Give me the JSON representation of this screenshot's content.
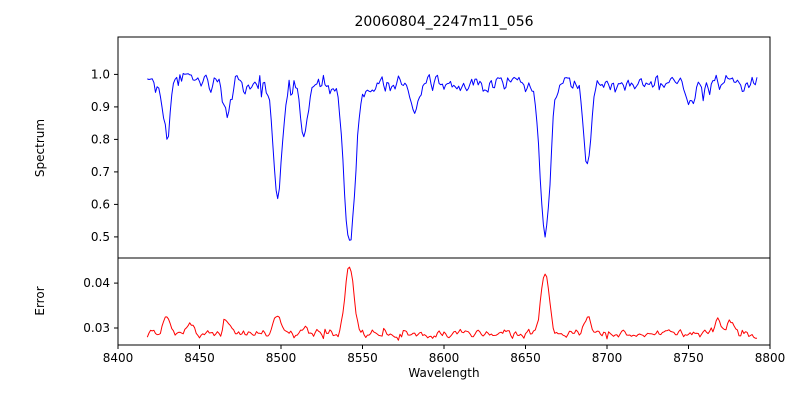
{
  "figure": {
    "title": "20060804_2247m11_056",
    "xlabel": "Wavelength",
    "background_color": "#ffffff"
  },
  "chart_data": [
    {
      "type": "line",
      "name": "spectrum",
      "ylabel": "Spectrum",
      "color": "#0000ff",
      "legend": null,
      "grid": false,
      "xlim": [
        8400,
        8800
      ],
      "ylim": [
        0.435,
        1.115
      ],
      "x_range": [
        8418,
        8792
      ],
      "x_step": 1,
      "yticks": [
        [
          0.5,
          "0.5"
        ],
        [
          0.6,
          "0.6"
        ],
        [
          0.7,
          "0.7"
        ],
        [
          0.8,
          "0.8"
        ],
        [
          0.9,
          "0.9"
        ],
        [
          1.0,
          "1.0"
        ]
      ],
      "baseline": 0.97,
      "noise_amplitude": 0.034,
      "clip_max": 1.055,
      "seed": 20060804,
      "absorption_lines": [
        {
          "center": 8430,
          "depth": 0.17,
          "width": 2.0
        },
        {
          "center": 8467,
          "depth": 0.1,
          "width": 2.0
        },
        {
          "center": 8498,
          "depth": 0.33,
          "width": 2.8
        },
        {
          "center": 8514,
          "depth": 0.17,
          "width": 2.0
        },
        {
          "center": 8542,
          "depth": 0.5,
          "width": 3.4
        },
        {
          "center": 8582,
          "depth": 0.07,
          "width": 2.0
        },
        {
          "center": 8662,
          "depth": 0.46,
          "width": 3.0
        },
        {
          "center": 8688,
          "depth": 0.26,
          "width": 2.2
        },
        {
          "center": 8751,
          "depth": 0.06,
          "width": 2.0
        }
      ]
    },
    {
      "type": "line",
      "name": "error",
      "ylabel": "Error",
      "color": "#ff0000",
      "legend": null,
      "grid": false,
      "xlim": [
        8400,
        8800
      ],
      "ylim": [
        0.0262,
        0.0456
      ],
      "x_range": [
        8418,
        8792
      ],
      "x_step": 1,
      "yticks": [
        [
          0.03,
          "0.03"
        ],
        [
          0.04,
          "0.04"
        ]
      ],
      "xticks": [
        [
          8400,
          "8400"
        ],
        [
          8450,
          "8450"
        ],
        [
          8500,
          "8500"
        ],
        [
          8550,
          "8550"
        ],
        [
          8600,
          "8600"
        ],
        [
          8650,
          "8650"
        ],
        [
          8700,
          "8700"
        ],
        [
          8750,
          "8750"
        ],
        [
          8800,
          "8800"
        ]
      ],
      "baseline": 0.0287,
      "noise_amplitude": 0.0011,
      "clip_max": 0.0452,
      "seed": 2247,
      "emission_peaks": [
        {
          "center": 8430,
          "height": 0.0035,
          "width": 2.0
        },
        {
          "center": 8445,
          "height": 0.002,
          "width": 2.0
        },
        {
          "center": 8467,
          "height": 0.0028,
          "width": 2.0
        },
        {
          "center": 8498,
          "height": 0.0045,
          "width": 2.6
        },
        {
          "center": 8514,
          "height": 0.002,
          "width": 2.0
        },
        {
          "center": 8542,
          "height": 0.0148,
          "width": 2.6
        },
        {
          "center": 8662,
          "height": 0.014,
          "width": 2.4
        },
        {
          "center": 8688,
          "height": 0.004,
          "width": 2.0
        },
        {
          "center": 8768,
          "height": 0.0035,
          "width": 2.0
        },
        {
          "center": 8776,
          "height": 0.003,
          "width": 2.0
        }
      ]
    }
  ]
}
